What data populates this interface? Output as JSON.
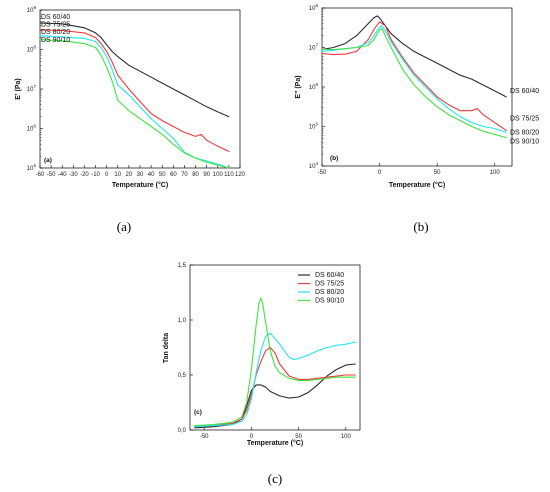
{
  "colors": {
    "DS 60/40": "#2b2b2b",
    "DS 75/25": "#ee3b3b",
    "DS 80/20": "#22e6f0",
    "DS 90/10": "#3fe33f"
  },
  "chart_data": [
    {
      "type": "line",
      "panel_tag": "(a)",
      "caption": "(a)",
      "xlabel": "Temperature (°C)",
      "ylabel": "E' (Pa)",
      "xlim": [
        -60,
        120
      ],
      "ylim": [
        5,
        9
      ],
      "ylog": true,
      "xticks": [
        "-60",
        "-50",
        "-40",
        "-30",
        "-20",
        "-10",
        "0",
        "10",
        "20",
        "30",
        "40",
        "50",
        "60",
        "70",
        "80",
        "90",
        "100",
        "110",
        "120"
      ],
      "yticks": [
        {
          "base": "10",
          "exp": "5",
          "v": 5
        },
        {
          "base": "10",
          "exp": "6",
          "v": 6
        },
        {
          "base": "10",
          "exp": "7",
          "v": 7
        },
        {
          "base": "10",
          "exp": "8",
          "v": 8
        },
        {
          "base": "10",
          "exp": "9",
          "v": 9
        }
      ],
      "legend_position": "top-left",
      "series": [
        {
          "name": "DS 60/40",
          "x": [
            -60,
            -40,
            -20,
            -10,
            -5,
            0,
            5,
            10,
            20,
            30,
            40,
            50,
            60,
            70,
            80,
            90,
            100,
            110
          ],
          "y": [
            8.67,
            8.65,
            8.55,
            8.42,
            8.3,
            8.12,
            7.95,
            7.82,
            7.6,
            7.45,
            7.3,
            7.15,
            7.0,
            6.85,
            6.7,
            6.55,
            6.42,
            6.3
          ]
        },
        {
          "name": "DS 75/25",
          "x": [
            -60,
            -40,
            -20,
            -10,
            -5,
            0,
            5,
            10,
            20,
            30,
            40,
            50,
            60,
            70,
            80,
            85,
            90,
            100,
            110
          ],
          "y": [
            8.5,
            8.48,
            8.42,
            8.3,
            8.15,
            7.95,
            7.68,
            7.35,
            7.0,
            6.68,
            6.38,
            6.2,
            6.05,
            5.9,
            5.8,
            5.85,
            5.7,
            5.55,
            5.42
          ]
        },
        {
          "name": "DS 80/20",
          "x": [
            -60,
            -40,
            -20,
            -10,
            -5,
            0,
            5,
            10,
            20,
            30,
            40,
            50,
            60,
            70,
            80,
            90,
            100,
            110
          ],
          "y": [
            8.35,
            8.32,
            8.28,
            8.2,
            8.05,
            7.82,
            7.5,
            7.1,
            6.85,
            6.55,
            6.25,
            6.0,
            5.75,
            5.4,
            5.25,
            5.18,
            5.1,
            5.0
          ]
        },
        {
          "name": "DS 90/10",
          "x": [
            -60,
            -40,
            -20,
            -10,
            -5,
            0,
            5,
            10,
            20,
            30,
            40,
            50,
            60,
            70,
            80,
            90,
            100,
            110
          ],
          "y": [
            8.25,
            8.22,
            8.15,
            8.05,
            7.85,
            7.55,
            7.2,
            6.72,
            6.45,
            6.25,
            6.05,
            5.85,
            5.6,
            5.38,
            5.25,
            5.15,
            5.07,
            5.0
          ]
        }
      ]
    },
    {
      "type": "line",
      "panel_tag": "(b)",
      "caption": "(b)",
      "xlabel": "Temperature (°C)",
      "ylabel": "E\" (Pa)",
      "xlim": [
        -50,
        115
      ],
      "ylim": [
        4,
        8
      ],
      "ylog": true,
      "xticks": [
        "-50",
        "0",
        "50",
        "100"
      ],
      "yticks": [
        {
          "base": "10",
          "exp": "4",
          "v": 4
        },
        {
          "base": "10",
          "exp": "5",
          "v": 5
        },
        {
          "base": "10",
          "exp": "6",
          "v": 6
        },
        {
          "base": "10",
          "exp": "7",
          "v": 7
        },
        {
          "base": "10",
          "exp": "8",
          "v": 8
        }
      ],
      "legend_position": "right",
      "series": [
        {
          "name": "DS 60/40",
          "x": [
            -50,
            -40,
            -30,
            -20,
            -10,
            -5,
            -2,
            0,
            5,
            10,
            20,
            30,
            40,
            50,
            60,
            70,
            80,
            90,
            100,
            110
          ],
          "y": [
            6.95,
            7.0,
            7.1,
            7.3,
            7.6,
            7.75,
            7.8,
            7.75,
            7.55,
            7.35,
            7.1,
            6.9,
            6.75,
            6.6,
            6.45,
            6.3,
            6.2,
            6.05,
            5.9,
            5.75
          ]
        },
        {
          "name": "DS 75/25",
          "x": [
            -50,
            -40,
            -30,
            -20,
            -10,
            -5,
            0,
            5,
            10,
            20,
            30,
            40,
            50,
            60,
            70,
            80,
            85,
            90,
            100,
            110
          ],
          "y": [
            6.85,
            6.82,
            6.83,
            6.9,
            7.2,
            7.45,
            7.65,
            7.55,
            7.2,
            6.75,
            6.35,
            6.05,
            5.75,
            5.55,
            5.4,
            5.4,
            5.45,
            5.3,
            5.1,
            4.9
          ]
        },
        {
          "name": "DS 80/20",
          "x": [
            -50,
            -40,
            -30,
            -20,
            -10,
            -5,
            0,
            2,
            5,
            10,
            20,
            30,
            40,
            50,
            60,
            70,
            80,
            90,
            100,
            110
          ],
          "y": [
            6.9,
            6.93,
            6.97,
            7.0,
            7.12,
            7.3,
            7.52,
            7.55,
            7.42,
            7.15,
            6.7,
            6.3,
            6.0,
            5.7,
            5.45,
            5.25,
            5.1,
            5.0,
            4.95,
            4.85
          ]
        },
        {
          "name": "DS 90/10",
          "x": [
            -50,
            -40,
            -30,
            -20,
            -10,
            -5,
            0,
            2,
            5,
            10,
            20,
            30,
            40,
            50,
            60,
            70,
            80,
            90,
            100,
            110
          ],
          "y": [
            6.95,
            6.95,
            6.97,
            7.0,
            7.05,
            7.2,
            7.45,
            7.48,
            7.3,
            7.0,
            6.45,
            6.05,
            5.75,
            5.5,
            5.3,
            5.15,
            5.0,
            4.88,
            4.8,
            4.72
          ]
        }
      ]
    },
    {
      "type": "line",
      "panel_tag": "(c)",
      "caption": "(c)",
      "xlabel": "Temperature (°C)",
      "ylabel": "Tan delta",
      "xlim": [
        -65,
        115
      ],
      "ylim": [
        0,
        1.5
      ],
      "xticks": [
        "-50",
        "0",
        "50",
        "100"
      ],
      "yticks": [
        "0,0",
        "0,5",
        "1,0",
        "1,5"
      ],
      "legend_position": "top-right",
      "series": [
        {
          "name": "DS 60/40",
          "x": [
            -60,
            -40,
            -20,
            -10,
            -5,
            0,
            5,
            10,
            15,
            20,
            30,
            40,
            50,
            60,
            70,
            80,
            90,
            100,
            110
          ],
          "y": [
            0.02,
            0.03,
            0.05,
            0.1,
            0.22,
            0.36,
            0.41,
            0.41,
            0.39,
            0.35,
            0.31,
            0.29,
            0.3,
            0.34,
            0.41,
            0.49,
            0.55,
            0.59,
            0.6
          ]
        },
        {
          "name": "DS 75/25",
          "x": [
            -60,
            -40,
            -20,
            -10,
            -5,
            0,
            5,
            10,
            15,
            20,
            25,
            30,
            40,
            50,
            60,
            70,
            80,
            90,
            100,
            110
          ],
          "y": [
            0.03,
            0.04,
            0.06,
            0.1,
            0.18,
            0.32,
            0.5,
            0.62,
            0.72,
            0.75,
            0.7,
            0.6,
            0.49,
            0.46,
            0.46,
            0.47,
            0.48,
            0.49,
            0.5,
            0.5
          ]
        },
        {
          "name": "DS 80/20",
          "x": [
            -60,
            -40,
            -20,
            -10,
            -5,
            0,
            5,
            10,
            15,
            20,
            30,
            40,
            45,
            50,
            60,
            70,
            80,
            90,
            100,
            110
          ],
          "y": [
            0.03,
            0.04,
            0.05,
            0.08,
            0.14,
            0.28,
            0.52,
            0.72,
            0.85,
            0.88,
            0.78,
            0.66,
            0.64,
            0.65,
            0.68,
            0.72,
            0.75,
            0.77,
            0.78,
            0.8
          ]
        },
        {
          "name": "DS 90/10",
          "x": [
            -60,
            -40,
            -20,
            -10,
            -5,
            0,
            5,
            8,
            10,
            12,
            15,
            20,
            25,
            30,
            40,
            50,
            60,
            70,
            80,
            90,
            100,
            110
          ],
          "y": [
            0.04,
            0.05,
            0.07,
            0.12,
            0.25,
            0.55,
            0.95,
            1.15,
            1.2,
            1.15,
            0.98,
            0.72,
            0.58,
            0.52,
            0.47,
            0.45,
            0.45,
            0.46,
            0.47,
            0.48,
            0.48,
            0.48
          ]
        }
      ]
    }
  ]
}
